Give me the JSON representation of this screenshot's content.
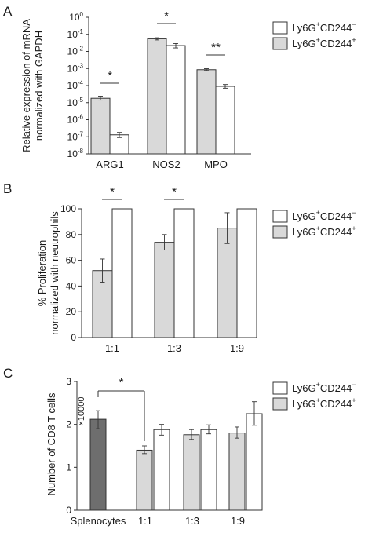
{
  "chart_data": [
    {
      "panel": "A",
      "type": "bar",
      "ylabel_lines": [
        "Relative expression of mRNA",
        "normalized with GAPDH"
      ],
      "yscale": "log",
      "ylim": [
        1e-08,
        1
      ],
      "yticks": [
        {
          "exp": "0",
          "value": 1
        },
        {
          "exp": "-1",
          "value": 0.1
        },
        {
          "exp": "-2",
          "value": 0.01
        },
        {
          "exp": "-3",
          "value": 0.001
        },
        {
          "exp": "-4",
          "value": 0.0001
        },
        {
          "exp": "-5",
          "value": 1e-05
        },
        {
          "exp": "-6",
          "value": 1e-06
        },
        {
          "exp": "-7",
          "value": 1e-07
        },
        {
          "exp": "-8",
          "value": 1e-08
        }
      ],
      "categories": [
        "ARG1",
        "NOS2",
        "MPO"
      ],
      "series": [
        {
          "key": "pos",
          "values": [
            1.8e-05,
            0.055,
            0.00085
          ],
          "errors": [
            [
              1.4e-05,
              2.4e-05
            ],
            [
              0.047,
              0.063
            ],
            [
              0.00075,
              0.00097
            ]
          ]
        },
        {
          "key": "neg",
          "values": [
            1.3e-07,
            0.022,
            9e-05
          ],
          "errors": [
            [
              9e-08,
              1.8e-07
            ],
            [
              0.016,
              0.029
            ],
            [
              7e-05,
              0.000115
            ]
          ]
        }
      ],
      "significance": [
        {
          "category": 0,
          "label": "*"
        },
        {
          "category": 1,
          "label": "*"
        },
        {
          "category": 2,
          "label": "**"
        }
      ],
      "grid": false
    },
    {
      "panel": "B",
      "type": "bar",
      "ylabel_lines": [
        "% Proliferation",
        "normalized with neutrophils"
      ],
      "ylim": [
        0,
        100
      ],
      "yticks": [
        0,
        20,
        40,
        60,
        80,
        100
      ],
      "categories": [
        "1:1",
        "1:3",
        "1:9"
      ],
      "series": [
        {
          "key": "pos",
          "values": [
            52,
            74,
            85
          ],
          "errors": [
            [
              43,
              61
            ],
            [
              68,
              80
            ],
            [
              73,
              97
            ]
          ]
        },
        {
          "key": "neg",
          "values": [
            100,
            100,
            100
          ],
          "errors": null
        }
      ],
      "significance": [
        {
          "category": 0,
          "label": "*"
        },
        {
          "category": 1,
          "label": "*"
        }
      ],
      "grid": false
    },
    {
      "panel": "C",
      "type": "bar",
      "ylabel": "Number of CD8 T cells",
      "yunit": "×10000",
      "ylim": [
        0,
        3
      ],
      "yticks": [
        0,
        1,
        2,
        3
      ],
      "groups": [
        {
          "label": "Splenocytes",
          "bars": [
            {
              "key": "spl",
              "value": 2.12,
              "error": [
                1.9,
                2.32
              ]
            }
          ]
        },
        {
          "label": "1:1",
          "bars": [
            {
              "key": "pos",
              "value": 1.4,
              "error": [
                1.32,
                1.5
              ]
            },
            {
              "key": "neg",
              "value": 1.88,
              "error": [
                1.75,
                2.0
              ]
            }
          ]
        },
        {
          "label": "1:3",
          "bars": [
            {
              "key": "pos",
              "value": 1.76,
              "error": [
                1.65,
                1.88
              ]
            },
            {
              "key": "neg",
              "value": 1.88,
              "error": [
                1.78,
                1.99
              ]
            }
          ]
        },
        {
          "label": "1:9",
          "bars": [
            {
              "key": "pos",
              "value": 1.8,
              "error": [
                1.68,
                1.94
              ]
            },
            {
              "key": "neg",
              "value": 2.25,
              "error": [
                1.98,
                2.53
              ]
            }
          ]
        }
      ],
      "significance": [
        {
          "from": "Splenocytes",
          "to": "1:1",
          "label": "*"
        }
      ],
      "grid": false
    }
  ],
  "legend": {
    "placement": "top-right",
    "entries": [
      {
        "key": "neg",
        "base": "Ly6G",
        "sup1": "+",
        "mid": "CD244",
        "sup2": "−"
      },
      {
        "key": "pos",
        "base": "Ly6G",
        "sup1": "+",
        "mid": "CD244",
        "sup2": "+"
      }
    ]
  },
  "colors": {
    "neg": "#ffffff",
    "pos": "#d9d9d9",
    "spl": "#6e6e6e",
    "stroke": "#333333"
  }
}
